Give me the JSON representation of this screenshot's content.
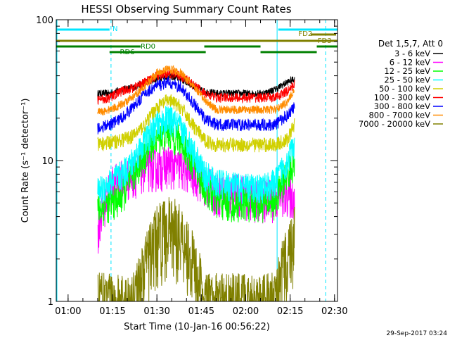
{
  "chart_data": {
    "type": "line",
    "title": "HESSI Observing Summary Count Rates",
    "xlabel": "Start Time (10-Jan-16 00:56:22)",
    "ylabel": "Count Rate (s⁻¹ detector⁻¹)",
    "yscale": "log",
    "ylim": [
      1,
      100
    ],
    "xlim_minutes_after_0056": [
      0,
      95
    ],
    "x_ticks": [
      "01:00",
      "01:15",
      "01:30",
      "01:45",
      "02:00",
      "02:15",
      "02:30"
    ],
    "y_ticks": [
      "1",
      "10",
      "100"
    ],
    "grid": false,
    "legend_position": "right",
    "legend_title": "Det 1,5,7, Att 0",
    "timestamp": "29-Sep-2017 03:24",
    "flag_labels": [
      "N",
      "FD2",
      "FD3",
      "RD0",
      "RD6"
    ],
    "series": [
      {
        "name": "3 - 6 keV",
        "color": "#000000",
        "x": [
          14,
          18,
          22,
          26,
          30,
          34,
          38,
          42,
          46,
          50,
          54,
          58,
          62,
          66,
          70,
          74,
          78,
          80.5
        ],
        "values": [
          30,
          30,
          32,
          33,
          36,
          38,
          40,
          38,
          34,
          31,
          30,
          30,
          30,
          30,
          30,
          32,
          36,
          38
        ]
      },
      {
        "name": "6 - 12 keV",
        "color": "#ff00ff",
        "x": [
          14,
          18,
          22,
          26,
          30,
          34,
          38,
          42,
          46,
          50,
          54,
          58,
          62,
          66,
          70,
          74,
          78,
          80.5
        ],
        "values": [
          3.2,
          6.5,
          7.5,
          8,
          9,
          9,
          9.5,
          9,
          8.5,
          7,
          6,
          6,
          6,
          5.5,
          5.5,
          5.5,
          6,
          5.5
        ]
      },
      {
        "name": "12 - 25 keV",
        "color": "#00ff00",
        "x": [
          14,
          18,
          22,
          26,
          30,
          34,
          38,
          42,
          46,
          50,
          54,
          58,
          62,
          66,
          70,
          74,
          78,
          80.5
        ],
        "values": [
          4.5,
          5,
          5.5,
          8,
          11,
          15,
          16,
          14,
          10,
          6.5,
          5.2,
          5,
          5,
          5,
          5,
          5.2,
          8,
          10
        ]
      },
      {
        "name": "25 - 50 keV",
        "color": "#00ffff",
        "x": [
          14,
          18,
          22,
          26,
          30,
          34,
          38,
          42,
          46,
          50,
          54,
          58,
          62,
          66,
          70,
          74,
          78,
          80.5
        ],
        "values": [
          6,
          7,
          8,
          10,
          14,
          18,
          20,
          17,
          12,
          8,
          7,
          6.8,
          6.5,
          6.5,
          6.5,
          7,
          10,
          13
        ]
      },
      {
        "name": "50 - 100 keV",
        "color": "#d0d000",
        "x": [
          14,
          18,
          22,
          26,
          30,
          34,
          38,
          42,
          46,
          50,
          54,
          58,
          62,
          66,
          70,
          74,
          78,
          80.5
        ],
        "values": [
          13,
          13.5,
          14,
          15,
          18,
          24,
          27,
          24,
          18,
          14,
          13,
          13,
          13,
          13,
          13,
          13,
          14,
          18
        ]
      },
      {
        "name": "100 - 300 keV",
        "color": "#ff0000",
        "x": [
          14,
          18,
          22,
          26,
          30,
          34,
          38,
          42,
          46,
          50,
          54,
          58,
          62,
          66,
          70,
          74,
          78,
          80.5
        ],
        "values": [
          27,
          28,
          31,
          33,
          36,
          40,
          42,
          40,
          35,
          30,
          28,
          28,
          28,
          28,
          28,
          28,
          31,
          35
        ]
      },
      {
        "name": "300 - 800 keV",
        "color": "#0000ff",
        "x": [
          14,
          18,
          22,
          26,
          30,
          34,
          38,
          42,
          46,
          50,
          54,
          58,
          62,
          66,
          70,
          74,
          78,
          80.5
        ],
        "values": [
          17,
          18,
          20,
          24,
          30,
          34,
          36,
          33,
          26,
          20,
          18,
          18,
          18,
          18,
          18,
          18,
          21,
          24
        ]
      },
      {
        "name": "800 - 7000 keV",
        "color": "#ff8c00",
        "x": [
          14,
          18,
          22,
          26,
          30,
          34,
          38,
          42,
          46,
          50,
          54,
          58,
          62,
          66,
          70,
          74,
          78,
          80.5
        ],
        "values": [
          22,
          23,
          25,
          28,
          34,
          42,
          45,
          42,
          34,
          27,
          23,
          23,
          23,
          23,
          23,
          23,
          26,
          32
        ]
      },
      {
        "name": "7000 - 20000 keV",
        "color": "#808000",
        "x": [
          14,
          18,
          22,
          26,
          30,
          34,
          38,
          42,
          46,
          50,
          54,
          58,
          62,
          66,
          70,
          74,
          78,
          80.5
        ],
        "values": [
          1,
          1,
          1,
          1,
          1.8,
          3,
          3.5,
          3.2,
          2,
          1,
          1,
          1,
          1,
          1,
          1,
          1,
          2.2,
          3
        ]
      }
    ]
  }
}
